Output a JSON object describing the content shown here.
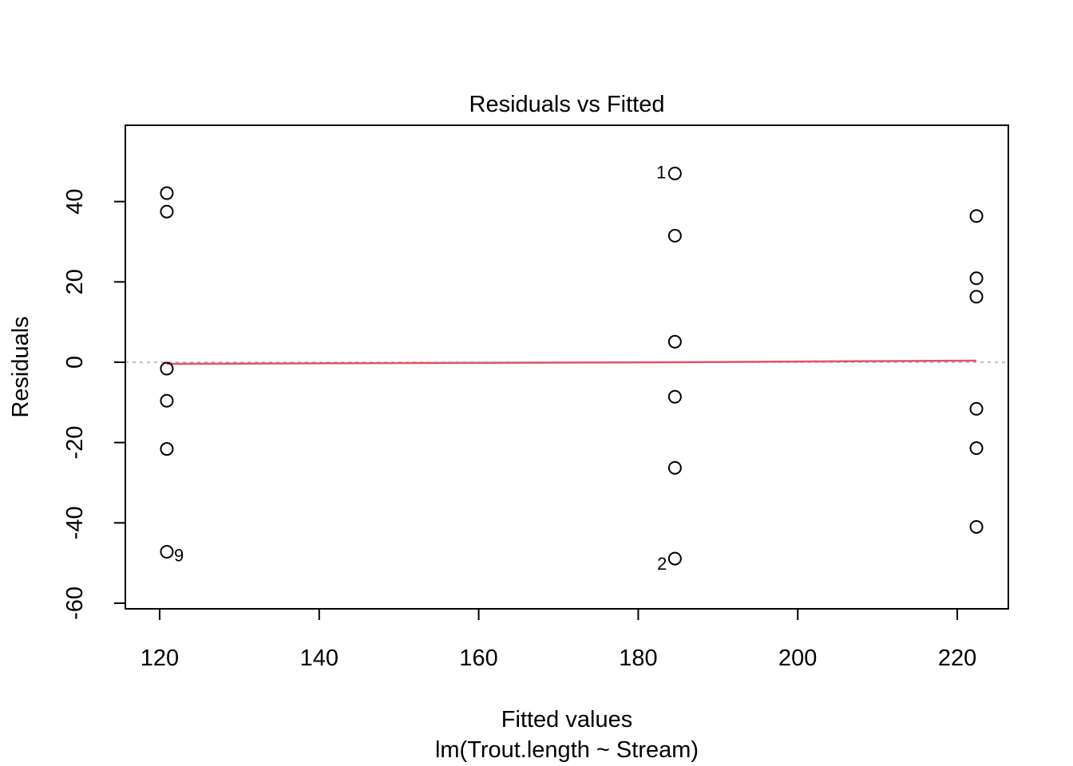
{
  "chart_data": {
    "type": "scatter",
    "title": "Residuals vs Fitted",
    "xlabel": "Fitted values",
    "xsublabel": "lm(Trout.length ~ Stream)",
    "ylabel": "Residuals",
    "xlim": [
      115.7,
      226.4
    ],
    "ylim": [
      -61.4,
      59.0
    ],
    "xticks": [
      120,
      140,
      160,
      180,
      200,
      220
    ],
    "yticks": [
      -60,
      -40,
      -20,
      0,
      20,
      40
    ],
    "grid": false,
    "points": [
      {
        "x": 120.9,
        "y": 42.1
      },
      {
        "x": 120.9,
        "y": 37.5
      },
      {
        "x": 120.9,
        "y": -1.6
      },
      {
        "x": 120.9,
        "y": -9.6
      },
      {
        "x": 120.9,
        "y": -21.6
      },
      {
        "x": 120.9,
        "y": -47.2,
        "label": "9"
      },
      {
        "x": 184.6,
        "y": 47.0,
        "label": "1"
      },
      {
        "x": 184.6,
        "y": 31.5
      },
      {
        "x": 184.6,
        "y": 5.1
      },
      {
        "x": 184.6,
        "y": -8.6
      },
      {
        "x": 184.6,
        "y": -26.3
      },
      {
        "x": 184.6,
        "y": -48.9,
        "label": "2"
      },
      {
        "x": 222.4,
        "y": 36.4
      },
      {
        "x": 222.4,
        "y": 20.9
      },
      {
        "x": 222.4,
        "y": 16.3
      },
      {
        "x": 222.4,
        "y": -11.6
      },
      {
        "x": 222.4,
        "y": -21.4
      },
      {
        "x": 222.4,
        "y": -41.0
      }
    ],
    "reference_line": {
      "y": 0,
      "color": "#aaaaaa",
      "style": "dashed"
    },
    "smooth_line": {
      "color": "#df536b",
      "points": [
        {
          "x": 120.9,
          "y": -0.4
        },
        {
          "x": 184.6,
          "y": 0.0
        },
        {
          "x": 222.4,
          "y": 0.4
        }
      ]
    }
  }
}
